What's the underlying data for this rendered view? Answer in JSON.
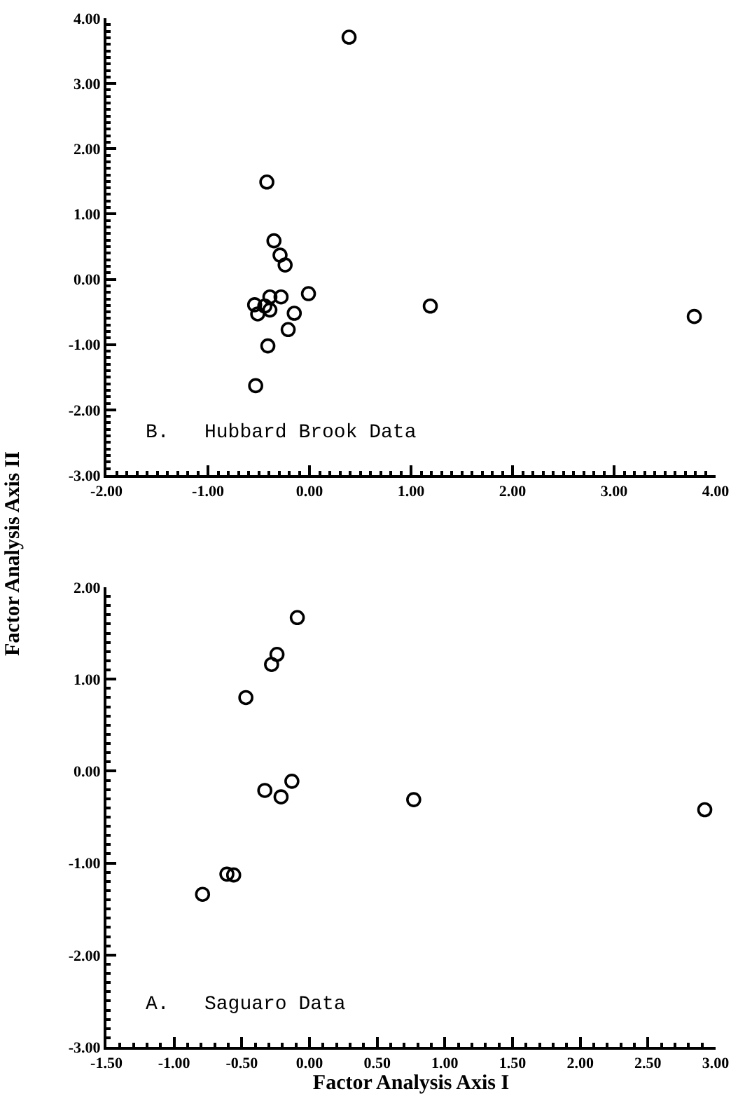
{
  "chart_data": [
    {
      "type": "scatter",
      "ylabel": "Factor Analysis Axis II",
      "annotations": [
        "B.   Hubbard Brook Data"
      ],
      "marker": "circle",
      "grid": false,
      "x": [
        0.39,
        -0.42,
        -0.35,
        -0.29,
        -0.24,
        -0.01,
        -0.28,
        -0.39,
        -0.54,
        -0.44,
        -0.51,
        -0.39,
        -0.15,
        -0.21,
        -0.41,
        -0.53,
        1.19,
        3.79
      ],
      "values": [
        3.71,
        1.49,
        0.59,
        0.37,
        0.22,
        -0.22,
        -0.27,
        -0.27,
        -0.39,
        -0.41,
        -0.53,
        -0.47,
        -0.52,
        -0.77,
        -1.02,
        -1.63,
        -0.41,
        -0.57
      ],
      "color": "#000000",
      "xlim": [
        -2,
        4
      ],
      "xticks": [
        {
          "value": -2,
          "label": "-2.00"
        },
        {
          "value": -1,
          "label": "-1.00"
        },
        {
          "value": 0,
          "label": "0.00"
        },
        {
          "value": 1,
          "label": "1.00"
        },
        {
          "value": 2,
          "label": "2.00"
        },
        {
          "value": 3,
          "label": "3.00"
        },
        {
          "value": 4,
          "label": "4.00"
        }
      ],
      "ylim": [
        -3,
        4
      ],
      "yticks": [
        {
          "value": -3,
          "label": "-3.00"
        },
        {
          "value": -2,
          "label": "-2.00"
        },
        {
          "value": -1,
          "label": "-1.00"
        },
        {
          "value": 0,
          "label": "0.00"
        },
        {
          "value": 1,
          "label": "1.00"
        },
        {
          "value": 2,
          "label": "2.00"
        },
        {
          "value": 3,
          "label": "3.00"
        },
        {
          "value": 4,
          "label": "4.00"
        }
      ]
    },
    {
      "type": "scatter",
      "xlabel": "Factor Analysis Axis I",
      "annotations": [
        "A.   Saguaro Data"
      ],
      "marker": "circle",
      "grid": false,
      "x": [
        -0.09,
        -0.24,
        -0.28,
        -0.47,
        -0.33,
        -0.21,
        -0.13,
        0.77,
        2.92,
        -0.61,
        -0.56,
        -0.79
      ],
      "values": [
        1.67,
        1.27,
        1.16,
        0.8,
        -0.21,
        -0.28,
        -0.11,
        -0.31,
        -0.42,
        -1.12,
        -1.13,
        -1.34
      ],
      "color": "#000000",
      "xlim": [
        -1.5,
        3
      ],
      "xticks": [
        {
          "value": -1.5,
          "label": "-1.50"
        },
        {
          "value": -1,
          "label": "-1.00"
        },
        {
          "value": -0.5,
          "label": "-0.50"
        },
        {
          "value": 0,
          "label": "0.00"
        },
        {
          "value": 0.5,
          "label": "0.50"
        },
        {
          "value": 1,
          "label": "1.00"
        },
        {
          "value": 1.5,
          "label": "1.50"
        },
        {
          "value": 2,
          "label": "2.00"
        },
        {
          "value": 2.5,
          "label": "2.50"
        },
        {
          "value": 3,
          "label": "3.00"
        }
      ],
      "ylim": [
        -3,
        2
      ],
      "yticks": [
        {
          "value": -3,
          "label": "-3.00"
        },
        {
          "value": -2,
          "label": "-2.00"
        },
        {
          "value": -1,
          "label": "-1.00"
        },
        {
          "value": 0,
          "label": "0.00"
        },
        {
          "value": 1,
          "label": "1.00"
        },
        {
          "value": 2,
          "label": "2.00"
        }
      ]
    }
  ]
}
